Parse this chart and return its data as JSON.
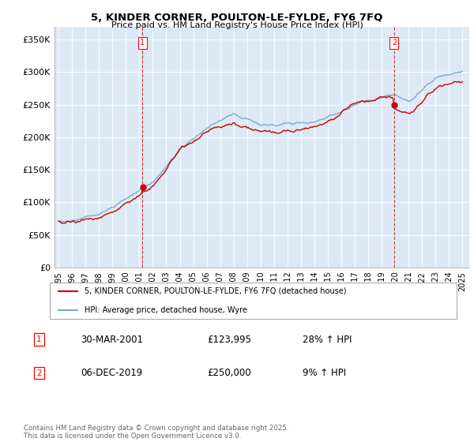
{
  "title": "5, KINDER CORNER, POULTON-LE-FYLDE, FY6 7FQ",
  "subtitle": "Price paid vs. HM Land Registry's House Price Index (HPI)",
  "ylabel_vals": [
    0,
    50000,
    100000,
    150000,
    200000,
    250000,
    300000,
    350000
  ],
  "ylabel_labels": [
    "£0",
    "£50K",
    "£100K",
    "£150K",
    "£200K",
    "£250K",
    "£300K",
    "£350K"
  ],
  "xlim_start": 1994.7,
  "xlim_end": 2025.5,
  "ylim": [
    0,
    370000
  ],
  "background_color": "#ffffff",
  "plot_bg_color": "#dce9f5",
  "grid_color": "#ffffff",
  "annotation1": {
    "label": "1",
    "date": "30-MAR-2001",
    "price": "£123,995",
    "pct": "28% ↑ HPI"
  },
  "annotation2": {
    "label": "2",
    "date": "06-DEC-2019",
    "price": "£250,000",
    "pct": "9% ↑ HPI"
  },
  "legend_line1": "5, KINDER CORNER, POULTON-LE-FYLDE, FY6 7FQ (detached house)",
  "legend_line2": "HPI: Average price, detached house, Wyre",
  "footer": "Contains HM Land Registry data © Crown copyright and database right 2025.\nThis data is licensed under the Open Government Licence v3.0.",
  "marker1_x": 2001.24,
  "marker1_y": 123995,
  "marker2_x": 2019.92,
  "marker2_y": 250000,
  "red_color": "#cc0000",
  "blue_color": "#7aaad0"
}
